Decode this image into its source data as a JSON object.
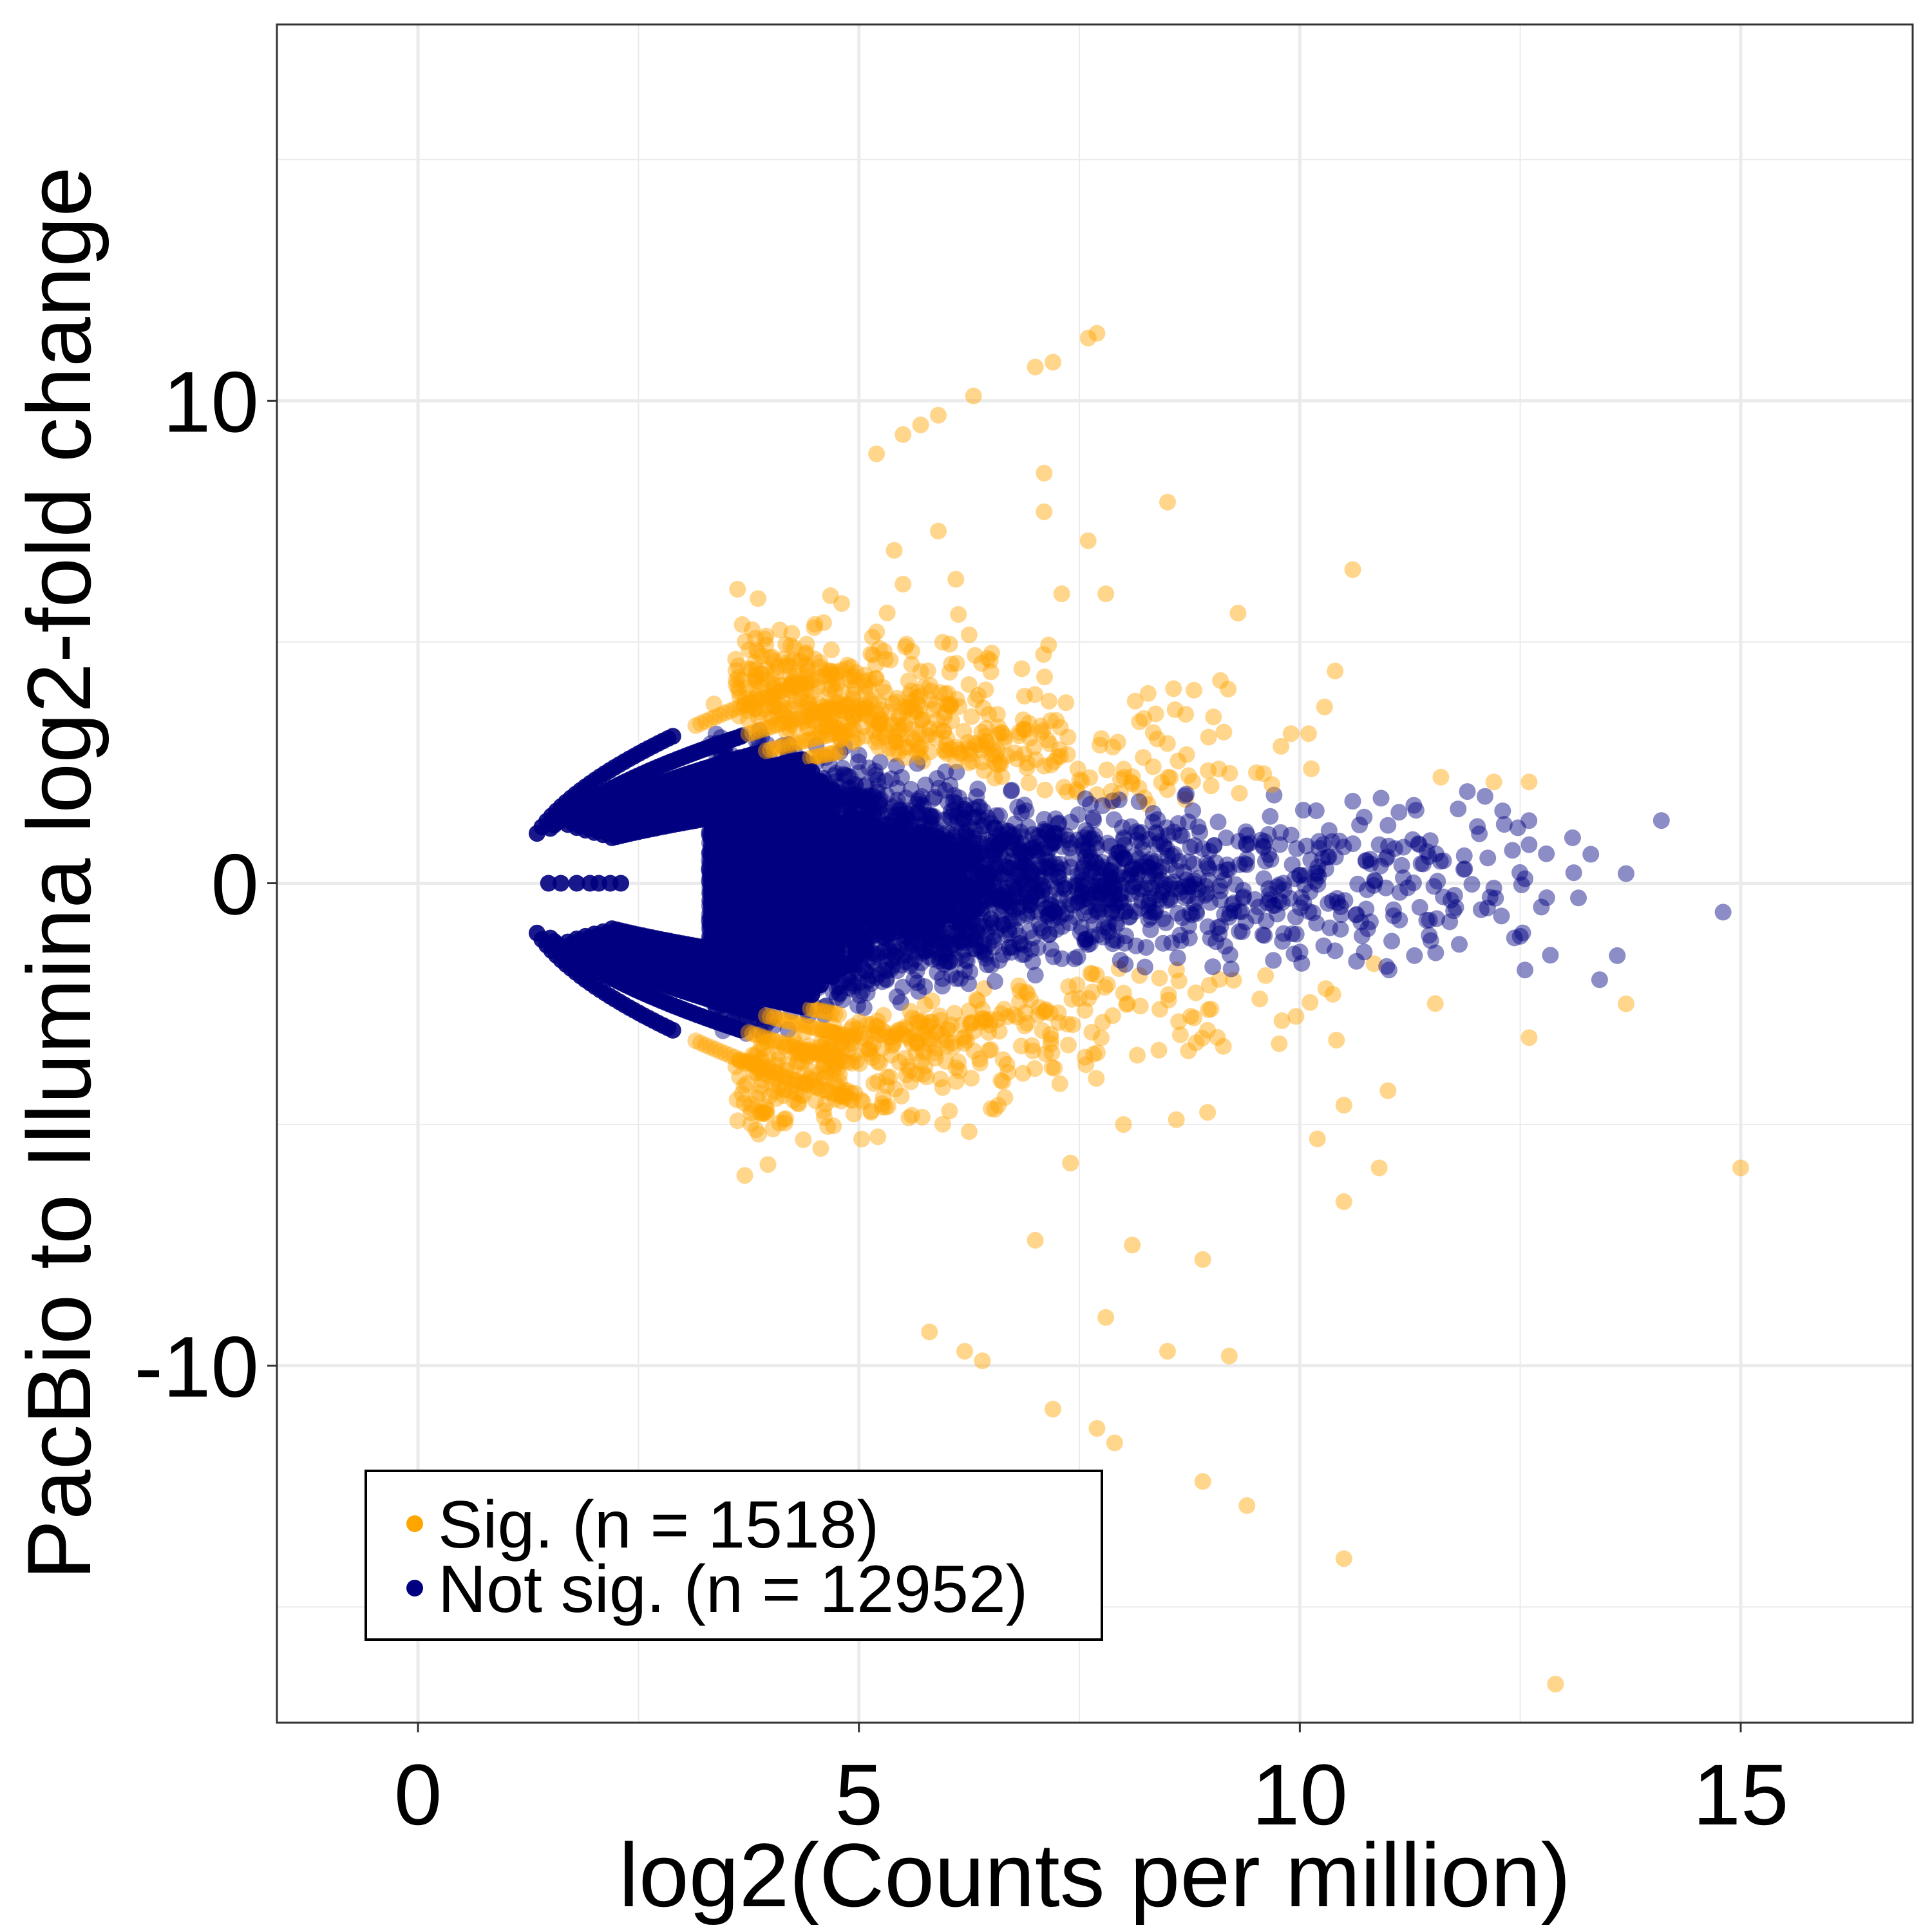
{
  "chart_data": {
    "type": "scatter",
    "xlabel": "log2(Counts per million)",
    "ylabel": "PacBio to Illumina log2-fold change",
    "xlim": [
      -1.6,
      16.95
    ],
    "ylim": [
      -17.4,
      17.8
    ],
    "xticks": [
      0,
      5,
      10,
      15
    ],
    "yticks": [
      -10,
      0,
      10
    ],
    "grid": true,
    "legend_position": "bottom-left",
    "legend": [
      {
        "label": "Sig. (n = 1518)",
        "color": "#FFA500"
      },
      {
        "label": "Not sig. (n = 12952)",
        "color": "#000080"
      }
    ],
    "series": [
      {
        "name": "Sig. (n = 1518)",
        "color": "#FFA500",
        "n": 1518,
        "outliers": [
          [
            7.6,
            11.3
          ],
          [
            7.7,
            11.4
          ],
          [
            7.0,
            10.7
          ],
          [
            7.2,
            10.8
          ],
          [
            6.3,
            10.1
          ],
          [
            5.9,
            9.7
          ],
          [
            5.7,
            9.5
          ],
          [
            5.5,
            9.3
          ],
          [
            5.2,
            8.9
          ],
          [
            7.1,
            8.5
          ],
          [
            7.1,
            7.7
          ],
          [
            8.5,
            7.9
          ],
          [
            7.6,
            7.1
          ],
          [
            5.9,
            7.3
          ],
          [
            5.4,
            6.9
          ],
          [
            5.5,
            6.2
          ],
          [
            6.1,
            6.3
          ],
          [
            7.3,
            6.0
          ],
          [
            7.8,
            6.0
          ],
          [
            10.6,
            6.5
          ],
          [
            9.3,
            5.6
          ],
          [
            10.4,
            4.4
          ],
          [
            9.1,
            4.2
          ],
          [
            8.8,
            4.0
          ],
          [
            9.9,
            3.1
          ],
          [
            10.1,
            3.1
          ],
          [
            11.6,
            2.2
          ],
          [
            12.2,
            2.1
          ],
          [
            12.6,
            2.1
          ],
          [
            12.6,
            -3.2
          ],
          [
            13.7,
            -2.5
          ],
          [
            15.0,
            -5.9
          ],
          [
            11.0,
            -4.3
          ],
          [
            10.5,
            -4.6
          ],
          [
            10.2,
            -5.3
          ],
          [
            10.9,
            -5.9
          ],
          [
            10.5,
            -6.6
          ],
          [
            8.0,
            -5.0
          ],
          [
            8.6,
            -4.9
          ],
          [
            7.4,
            -5.8
          ],
          [
            8.1,
            -7.5
          ],
          [
            7.0,
            -7.4
          ],
          [
            7.8,
            -9.0
          ],
          [
            8.5,
            -9.7
          ],
          [
            8.9,
            -7.8
          ],
          [
            9.2,
            -9.8
          ],
          [
            6.2,
            -9.7
          ],
          [
            6.4,
            -9.9
          ],
          [
            5.8,
            -9.3
          ],
          [
            7.2,
            -10.9
          ],
          [
            7.7,
            -11.3
          ],
          [
            7.9,
            -11.6
          ],
          [
            8.9,
            -12.4
          ],
          [
            9.4,
            -12.9
          ],
          [
            10.5,
            -14.0
          ],
          [
            12.9,
            -16.6
          ]
        ]
      },
      {
        "name": "Not sig. (n = 12952)",
        "color": "#000080",
        "n": 12952,
        "outliers": [
          [
            14.8,
            -0.6
          ],
          [
            14.1,
            1.3
          ],
          [
            13.3,
            0.6
          ],
          [
            13.7,
            0.2
          ],
          [
            13.6,
            -1.5
          ],
          [
            13.4,
            -2.0
          ],
          [
            12.8,
            -0.3
          ],
          [
            12.5,
            -1.1
          ],
          [
            12.6,
            0.8
          ],
          [
            12.3,
            1.5
          ],
          [
            12.1,
            1.8
          ],
          [
            11.9,
            1.9
          ],
          [
            12.2,
            -0.1
          ],
          [
            11.7,
            -0.8
          ],
          [
            11.4,
            0.4
          ],
          [
            11.3,
            -1.5
          ],
          [
            11.0,
            1.2
          ],
          [
            10.6,
            1.7
          ],
          [
            10.9,
            0.8
          ],
          [
            10.8,
            -0.8
          ],
          [
            10.2,
            0.2
          ],
          [
            10.4,
            -1.4
          ],
          [
            9.9,
            1.0
          ],
          [
            9.7,
            -1.6
          ],
          [
            9.4,
            0.5
          ]
        ]
      }
    ]
  }
}
